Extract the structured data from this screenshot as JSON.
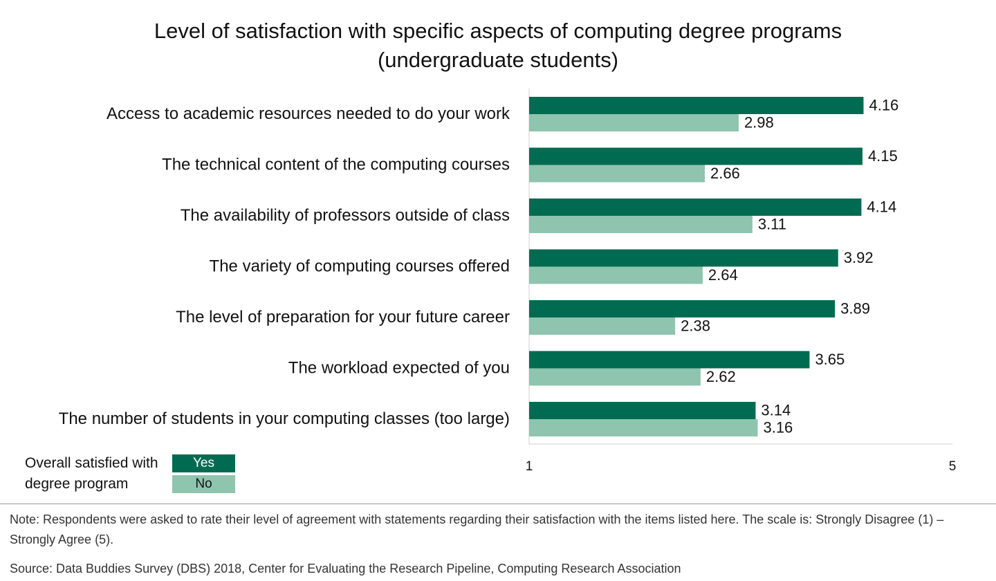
{
  "title_lines": [
    "Level of satisfaction with specific aspects of computing degree programs",
    "(undergraduate students)"
  ],
  "legend": {
    "label_lines": [
      "Overall satisfied with",
      "degree program"
    ],
    "items": [
      {
        "label": "Yes",
        "color": "#006b50"
      },
      {
        "label": "No",
        "color": "#8fc4ae"
      }
    ]
  },
  "note": "Note: Respondents were asked to rate their level of agreement with statements regarding their satisfaction with the items listed here. The scale is: Strongly Disagree (1) – Strongly Agree (5).",
  "source": "Source: Data Buddies Survey (DBS) 2018, Center for Evaluating the Research Pipeline, Computing Research Association",
  "chart_data": {
    "type": "bar",
    "orientation": "horizontal",
    "title": "Level of satisfaction with specific aspects of computing degree programs (undergraduate students)",
    "categories": [
      "Access to academic resources needed to do your work",
      "The technical content of the computing courses",
      "The availability of professors outside of class",
      "The variety of computing courses offered",
      "The level of preparation for your future career",
      "The workload expected of you",
      "The number of students in your computing classes (too large)"
    ],
    "series": [
      {
        "name": "Yes",
        "color": "#006b50",
        "values": [
          4.16,
          4.15,
          4.14,
          3.92,
          3.89,
          3.65,
          3.14
        ]
      },
      {
        "name": "No",
        "color": "#8fc4ae",
        "values": [
          2.98,
          2.66,
          3.11,
          2.64,
          2.38,
          2.62,
          3.16
        ]
      }
    ],
    "xlim": [
      1,
      5
    ],
    "xticks": [
      "1",
      "5"
    ],
    "grid": false,
    "legend_position": "bottom-left",
    "data_labels": true
  }
}
